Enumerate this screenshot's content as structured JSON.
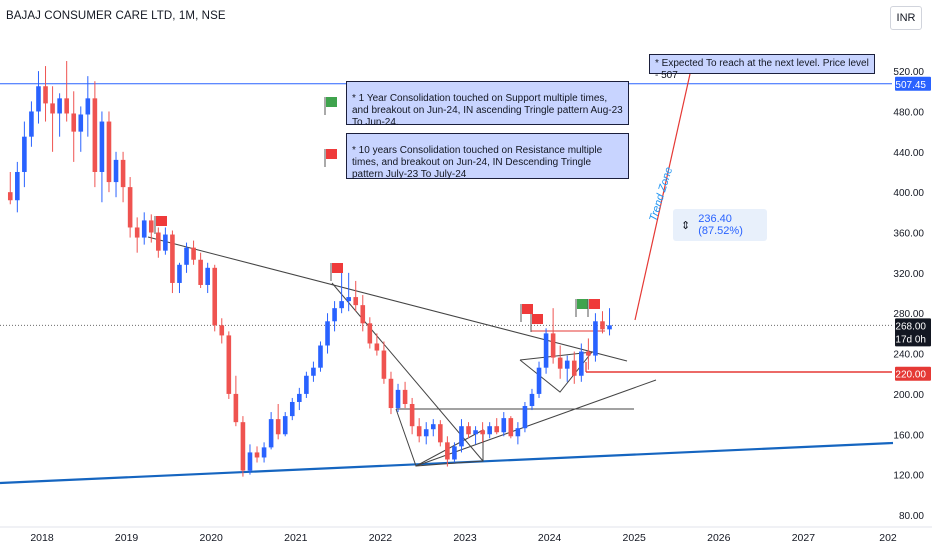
{
  "header": {
    "title": "BAJAJ CONSUMER CARE LTD, 1M, NSE",
    "currency": "INR"
  },
  "annotations": {
    "note_target": "*  Expected To reach at the next level. Price level - 507",
    "note_support": "*  1 Year Consolidation touched on Support multiple times, and breakout on Jun-24, IN ascending Tringle pattern Aug-23 To Jun-24.",
    "note_resistance": "*  10 years Consolidation touched on Resistance multiple times, and breakout on Jun-24, IN Descending Tringle pattern July-23 To July-24",
    "trend_zone": "Trend Zone",
    "measure": "236.40 (87.52%)"
  },
  "colors": {
    "up": "#2962ff",
    "down": "#ef5350",
    "hline": "#2962ff",
    "support": "#1565c0",
    "level_red": "#e53935",
    "trend": "#131722"
  },
  "chart_data": {
    "type": "candlestick",
    "title": "BAJAJ CONSUMER CARE LTD, 1M, NSE",
    "interval": "1M",
    "currency": "INR",
    "x_ticks": [
      "2018",
      "2019",
      "2020",
      "2021",
      "2022",
      "2023",
      "2024",
      "2025",
      "2026",
      "2027",
      "202"
    ],
    "y_ticks": [
      80,
      120,
      160,
      200,
      240,
      280,
      320,
      360,
      400,
      440,
      480,
      520
    ],
    "ylim": [
      76,
      533
    ],
    "price_labels": [
      {
        "value": 507.45,
        "text": "507.45",
        "kind": "hline"
      },
      {
        "value": 268.0,
        "text": "268.00",
        "sub": "17d 0h",
        "kind": "last"
      },
      {
        "value": 220.0,
        "text": "220.00",
        "kind": "level"
      }
    ],
    "candles": [
      {
        "d": "2017-08",
        "o": 400,
        "h": 420,
        "l": 388,
        "c": 392
      },
      {
        "d": "2017-09",
        "o": 392,
        "h": 430,
        "l": 380,
        "c": 420
      },
      {
        "d": "2017-10",
        "o": 420,
        "h": 470,
        "l": 405,
        "c": 455
      },
      {
        "d": "2017-11",
        "o": 455,
        "h": 490,
        "l": 445,
        "c": 480
      },
      {
        "d": "2017-12",
        "o": 480,
        "h": 520,
        "l": 468,
        "c": 505
      },
      {
        "d": "2018-01",
        "o": 505,
        "h": 525,
        "l": 470,
        "c": 488
      },
      {
        "d": "2018-02",
        "o": 488,
        "h": 505,
        "l": 440,
        "c": 478
      },
      {
        "d": "2018-03",
        "o": 478,
        "h": 498,
        "l": 455,
        "c": 493
      },
      {
        "d": "2018-04",
        "o": 493,
        "h": 530,
        "l": 470,
        "c": 478
      },
      {
        "d": "2018-05",
        "o": 478,
        "h": 500,
        "l": 430,
        "c": 460
      },
      {
        "d": "2018-06",
        "o": 460,
        "h": 485,
        "l": 440,
        "c": 477
      },
      {
        "d": "2018-07",
        "o": 477,
        "h": 515,
        "l": 455,
        "c": 493
      },
      {
        "d": "2018-08",
        "o": 493,
        "h": 510,
        "l": 405,
        "c": 420
      },
      {
        "d": "2018-09",
        "o": 420,
        "h": 480,
        "l": 390,
        "c": 470
      },
      {
        "d": "2018-10",
        "o": 470,
        "h": 480,
        "l": 400,
        "c": 410
      },
      {
        "d": "2018-11",
        "o": 410,
        "h": 440,
        "l": 395,
        "c": 432
      },
      {
        "d": "2018-12",
        "o": 432,
        "h": 440,
        "l": 390,
        "c": 405
      },
      {
        "d": "2019-01",
        "o": 405,
        "h": 415,
        "l": 355,
        "c": 365
      },
      {
        "d": "2019-02",
        "o": 365,
        "h": 375,
        "l": 340,
        "c": 355
      },
      {
        "d": "2019-03",
        "o": 355,
        "h": 380,
        "l": 348,
        "c": 372
      },
      {
        "d": "2019-04",
        "o": 372,
        "h": 378,
        "l": 350,
        "c": 360
      },
      {
        "d": "2019-05",
        "o": 360,
        "h": 365,
        "l": 335,
        "c": 342
      },
      {
        "d": "2019-06",
        "o": 342,
        "h": 365,
        "l": 338,
        "c": 358
      },
      {
        "d": "2019-07",
        "o": 358,
        "h": 362,
        "l": 300,
        "c": 310
      },
      {
        "d": "2019-08",
        "o": 310,
        "h": 330,
        "l": 300,
        "c": 328
      },
      {
        "d": "2019-09",
        "o": 328,
        "h": 350,
        "l": 320,
        "c": 345
      },
      {
        "d": "2019-10",
        "o": 345,
        "h": 352,
        "l": 328,
        "c": 333
      },
      {
        "d": "2019-11",
        "o": 333,
        "h": 340,
        "l": 305,
        "c": 308
      },
      {
        "d": "2019-12",
        "o": 308,
        "h": 330,
        "l": 300,
        "c": 325
      },
      {
        "d": "2020-01",
        "o": 325,
        "h": 328,
        "l": 262,
        "c": 268
      },
      {
        "d": "2020-02",
        "o": 268,
        "h": 275,
        "l": 250,
        "c": 258
      },
      {
        "d": "2020-03",
        "o": 258,
        "h": 262,
        "l": 195,
        "c": 200
      },
      {
        "d": "2020-04",
        "o": 200,
        "h": 218,
        "l": 168,
        "c": 172
      },
      {
        "d": "2020-05",
        "o": 172,
        "h": 178,
        "l": 118,
        "c": 124
      },
      {
        "d": "2020-06",
        "o": 124,
        "h": 150,
        "l": 120,
        "c": 142
      },
      {
        "d": "2020-07",
        "o": 142,
        "h": 148,
        "l": 132,
        "c": 137
      },
      {
        "d": "2020-08",
        "o": 137,
        "h": 152,
        "l": 132,
        "c": 147
      },
      {
        "d": "2020-09",
        "o": 147,
        "h": 182,
        "l": 145,
        "c": 175
      },
      {
        "d": "2020-10",
        "o": 175,
        "h": 190,
        "l": 155,
        "c": 160
      },
      {
        "d": "2020-11",
        "o": 160,
        "h": 182,
        "l": 158,
        "c": 178
      },
      {
        "d": "2020-12",
        "o": 178,
        "h": 196,
        "l": 174,
        "c": 192
      },
      {
        "d": "2021-01",
        "o": 192,
        "h": 206,
        "l": 184,
        "c": 200
      },
      {
        "d": "2021-02",
        "o": 200,
        "h": 222,
        "l": 196,
        "c": 218
      },
      {
        "d": "2021-03",
        "o": 218,
        "h": 232,
        "l": 212,
        "c": 226
      },
      {
        "d": "2021-04",
        "o": 226,
        "h": 252,
        "l": 222,
        "c": 248
      },
      {
        "d": "2021-05",
        "o": 248,
        "h": 280,
        "l": 240,
        "c": 272
      },
      {
        "d": "2021-06",
        "o": 272,
        "h": 292,
        "l": 262,
        "c": 285
      },
      {
        "d": "2021-07",
        "o": 285,
        "h": 325,
        "l": 280,
        "c": 292
      },
      {
        "d": "2021-08",
        "o": 292,
        "h": 320,
        "l": 282,
        "c": 296
      },
      {
        "d": "2021-09",
        "o": 296,
        "h": 312,
        "l": 282,
        "c": 288
      },
      {
        "d": "2021-10",
        "o": 288,
        "h": 298,
        "l": 262,
        "c": 270
      },
      {
        "d": "2021-11",
        "o": 270,
        "h": 276,
        "l": 245,
        "c": 250
      },
      {
        "d": "2021-12",
        "o": 250,
        "h": 260,
        "l": 238,
        "c": 243
      },
      {
        "d": "2022-01",
        "o": 243,
        "h": 252,
        "l": 210,
        "c": 215
      },
      {
        "d": "2022-02",
        "o": 215,
        "h": 222,
        "l": 180,
        "c": 186
      },
      {
        "d": "2022-03",
        "o": 186,
        "h": 210,
        "l": 182,
        "c": 204
      },
      {
        "d": "2022-04",
        "o": 204,
        "h": 212,
        "l": 186,
        "c": 190
      },
      {
        "d": "2022-05",
        "o": 190,
        "h": 196,
        "l": 160,
        "c": 168
      },
      {
        "d": "2022-06",
        "o": 168,
        "h": 176,
        "l": 152,
        "c": 158
      },
      {
        "d": "2022-07",
        "o": 158,
        "h": 172,
        "l": 150,
        "c": 165
      },
      {
        "d": "2022-08",
        "o": 165,
        "h": 175,
        "l": 158,
        "c": 170
      },
      {
        "d": "2022-09",
        "o": 170,
        "h": 174,
        "l": 148,
        "c": 152
      },
      {
        "d": "2022-10",
        "o": 152,
        "h": 158,
        "l": 128,
        "c": 135
      },
      {
        "d": "2022-11",
        "o": 135,
        "h": 152,
        "l": 132,
        "c": 148
      },
      {
        "d": "2022-12",
        "o": 148,
        "h": 175,
        "l": 142,
        "c": 168
      },
      {
        "d": "2023-01",
        "o": 168,
        "h": 172,
        "l": 156,
        "c": 160
      },
      {
        "d": "2023-02",
        "o": 160,
        "h": 168,
        "l": 150,
        "c": 164
      },
      {
        "d": "2023-03",
        "o": 164,
        "h": 172,
        "l": 152,
        "c": 160
      },
      {
        "d": "2023-04",
        "o": 160,
        "h": 172,
        "l": 156,
        "c": 168
      },
      {
        "d": "2023-05",
        "o": 168,
        "h": 176,
        "l": 160,
        "c": 162
      },
      {
        "d": "2023-06",
        "o": 162,
        "h": 182,
        "l": 158,
        "c": 176
      },
      {
        "d": "2023-07",
        "o": 176,
        "h": 178,
        "l": 156,
        "c": 158
      },
      {
        "d": "2023-08",
        "o": 158,
        "h": 172,
        "l": 150,
        "c": 166
      },
      {
        "d": "2023-09",
        "o": 166,
        "h": 192,
        "l": 162,
        "c": 188
      },
      {
        "d": "2023-10",
        "o": 188,
        "h": 205,
        "l": 184,
        "c": 200
      },
      {
        "d": "2023-11",
        "o": 200,
        "h": 232,
        "l": 196,
        "c": 226
      },
      {
        "d": "2023-12",
        "o": 226,
        "h": 265,
        "l": 220,
        "c": 260
      },
      {
        "d": "2024-01",
        "o": 260,
        "h": 285,
        "l": 230,
        "c": 236
      },
      {
        "d": "2024-02",
        "o": 236,
        "h": 248,
        "l": 215,
        "c": 225
      },
      {
        "d": "2024-03",
        "o": 225,
        "h": 238,
        "l": 212,
        "c": 233
      },
      {
        "d": "2024-04",
        "o": 233,
        "h": 242,
        "l": 210,
        "c": 218
      },
      {
        "d": "2024-05",
        "o": 218,
        "h": 250,
        "l": 212,
        "c": 242
      },
      {
        "d": "2024-06",
        "o": 242,
        "h": 255,
        "l": 224,
        "c": 238
      },
      {
        "d": "2024-07",
        "o": 238,
        "h": 280,
        "l": 232,
        "c": 272
      },
      {
        "d": "2024-08",
        "o": 272,
        "h": 282,
        "l": 260,
        "c": 264
      },
      {
        "d": "2024-09",
        "o": 264,
        "h": 285,
        "l": 258,
        "c": 268
      }
    ]
  }
}
